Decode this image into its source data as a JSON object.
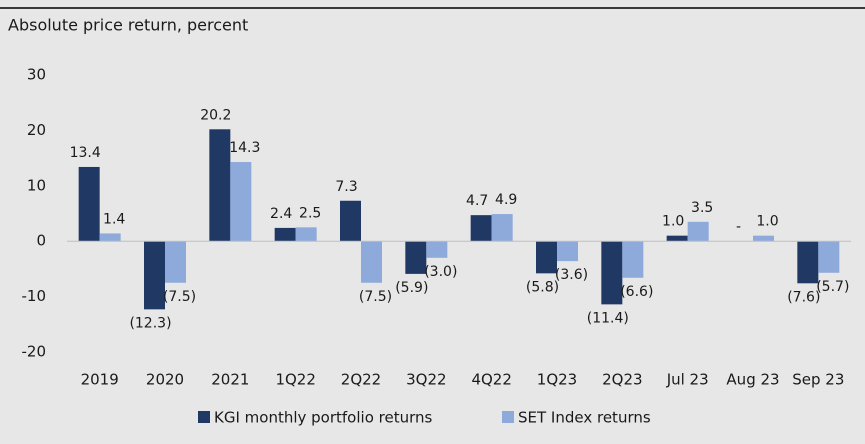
{
  "chart_data": {
    "type": "bar",
    "subtitle": "Absolute price return, percent",
    "categories": [
      "2019",
      "2020",
      "2021",
      "1Q22",
      "2Q22",
      "3Q22",
      "4Q22",
      "1Q23",
      "2Q23",
      "Jul 23",
      "Aug 23",
      "Sep 23"
    ],
    "series": [
      {
        "name": "KGI monthly portfolio returns",
        "color": "#1f3864",
        "values": [
          13.4,
          -12.3,
          20.2,
          2.4,
          7.3,
          -5.9,
          4.7,
          -5.8,
          -11.4,
          1.0,
          0,
          -7.6
        ],
        "value_labels": [
          "13.4",
          "(12.3)",
          "20.2",
          "2.4",
          "7.3",
          "(5.9)",
          "4.7",
          "(5.8)",
          "(11.4)",
          "1.0",
          "-",
          "(7.6)"
        ]
      },
      {
        "name": "SET Index returns",
        "color": "#8eaadb",
        "values": [
          1.4,
          -7.5,
          14.3,
          2.5,
          -7.5,
          -3.0,
          4.9,
          -3.6,
          -6.6,
          3.5,
          1.0,
          -5.7
        ],
        "value_labels": [
          "1.4",
          "(7.5)",
          "14.3",
          "2.5",
          "(7.5)",
          "(3.0)",
          "4.9",
          "(3.6)",
          "(6.6)",
          "3.5",
          "1.0",
          "(5.7)"
        ]
      }
    ],
    "ylim": [
      -20,
      30
    ],
    "yticks": [
      -20,
      -10,
      0,
      10,
      20,
      30
    ],
    "legend": "bottom"
  }
}
